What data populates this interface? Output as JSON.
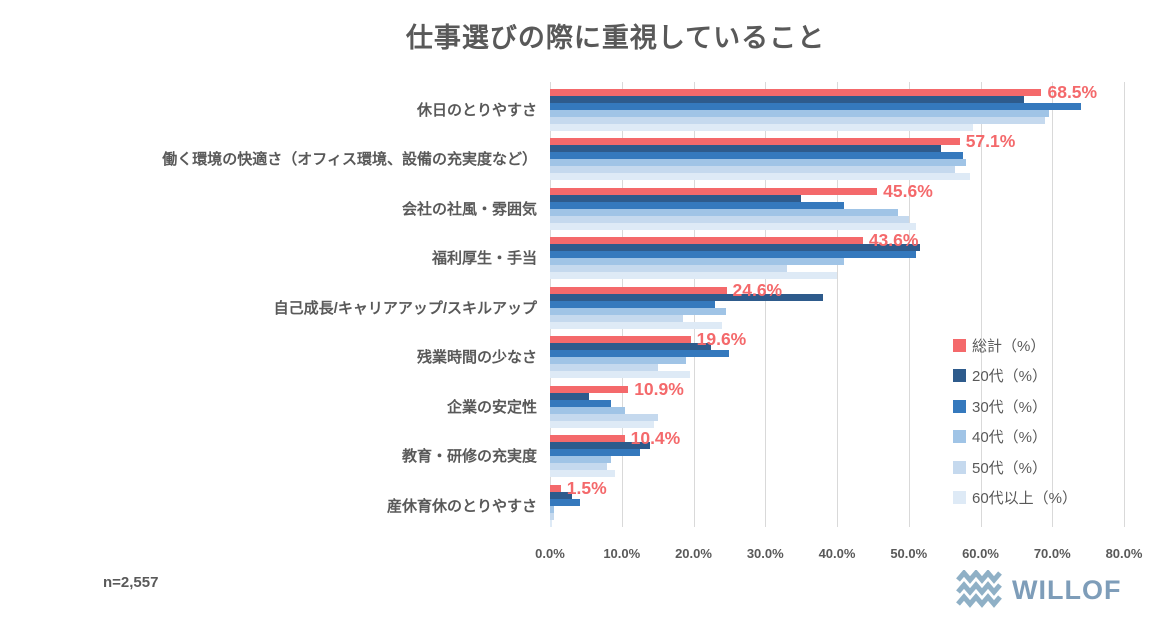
{
  "chart_data": {
    "type": "bar",
    "orientation": "horizontal",
    "title": "仕事選びの際に重視していること",
    "xlabel": "",
    "ylabel": "",
    "xlim": [
      0,
      80
    ],
    "grid": true,
    "tick_labels": [
      "0.0%",
      "10.0%",
      "20.0%",
      "30.0%",
      "40.0%",
      "50.0%",
      "60.0%",
      "70.0%",
      "80.0%"
    ],
    "legend_position": "right-middle",
    "categories": [
      "休日のとりやすさ",
      "働く環境の快適さ（オフィス環境、設備の充実度など）",
      "会社の社風・雰囲気",
      "福利厚生・手当",
      "自己成長/キャリアアップ/スキルアップ",
      "残業時間の少なさ",
      "企業の安定性",
      "教育・研修の充実度",
      "産休育休のとりやすさ"
    ],
    "series": [
      {
        "name": "総計（%）",
        "color": "#f4696b",
        "values": [
          68.5,
          57.1,
          45.6,
          43.6,
          24.6,
          19.6,
          10.9,
          10.4,
          1.5
        ]
      },
      {
        "name": "20代（%）",
        "color": "#2e5b8c",
        "values": [
          66.0,
          54.5,
          35.0,
          51.5,
          38.0,
          22.5,
          5.5,
          14.0,
          3.1
        ]
      },
      {
        "name": "30代（%）",
        "color": "#3579bd",
        "values": [
          74.0,
          57.5,
          41.0,
          51.0,
          23.0,
          25.0,
          8.5,
          12.5,
          4.2
        ]
      },
      {
        "name": "40代（%）",
        "color": "#a0c4e6",
        "values": [
          69.5,
          58.0,
          48.5,
          41.0,
          24.5,
          19.0,
          10.5,
          8.5,
          0.5
        ]
      },
      {
        "name": "50代（%）",
        "color": "#c5d9ee",
        "values": [
          69.0,
          56.5,
          50.0,
          33.0,
          18.5,
          15.0,
          15.0,
          8.0,
          0.5
        ]
      },
      {
        "name": "60代以上（%）",
        "color": "#deeaf6",
        "values": [
          59.0,
          58.5,
          51.0,
          40.0,
          24.0,
          19.5,
          14.5,
          9.0,
          0.3
        ]
      }
    ],
    "value_labels": [
      "68.5%",
      "57.1%",
      "45.6%",
      "43.6%",
      "24.6%",
      "19.6%",
      "10.9%",
      "10.4%",
      "1.5%"
    ],
    "value_label_series": "総計（%）"
  },
  "footer": {
    "sample_label": "n=2,557",
    "brand": "WILLOF"
  },
  "style_colors": {
    "title_text": "#595959",
    "axis_text": "#595959",
    "gridline": "#d9d9d9",
    "value_label": "#f4696b",
    "brand_blue": "#7e9db9",
    "brand_wave": "#8fb0c6",
    "background": "#ffffff"
  }
}
